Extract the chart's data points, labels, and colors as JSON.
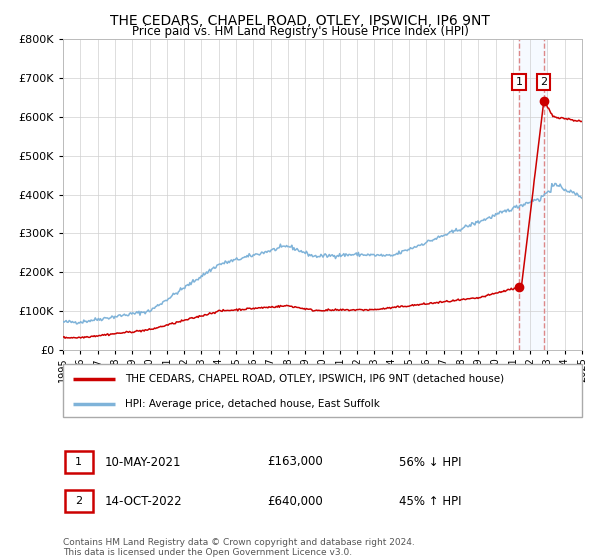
{
  "title": "THE CEDARS, CHAPEL ROAD, OTLEY, IPSWICH, IP6 9NT",
  "subtitle": "Price paid vs. HM Land Registry's House Price Index (HPI)",
  "legend_line1": "THE CEDARS, CHAPEL ROAD, OTLEY, IPSWICH, IP6 9NT (detached house)",
  "legend_line2": "HPI: Average price, detached house, East Suffolk",
  "annotation1_label": "1",
  "annotation1_date": "10-MAY-2021",
  "annotation1_price": "£163,000",
  "annotation1_hpi": "56% ↓ HPI",
  "annotation2_label": "2",
  "annotation2_date": "14-OCT-2022",
  "annotation2_price": "£640,000",
  "annotation2_hpi": "45% ↑ HPI",
  "footer": "Contains HM Land Registry data © Crown copyright and database right 2024.\nThis data is licensed under the Open Government Licence v3.0.",
  "hpi_color": "#7fb3d9",
  "price_color": "#cc0000",
  "marker_color": "#cc0000",
  "dashed_line_color": "#dd8888",
  "bg_highlight_color": "#ddeeff",
  "annotation_box_color": "#cc0000",
  "ylim": [
    0,
    800000
  ],
  "yticks": [
    0,
    100000,
    200000,
    300000,
    400000,
    500000,
    600000,
    700000,
    800000
  ],
  "year_start": 1995,
  "year_end": 2025,
  "transaction1_year": 2021.36,
  "transaction1_value": 163000,
  "transaction2_year": 2022.79,
  "transaction2_value": 640000
}
